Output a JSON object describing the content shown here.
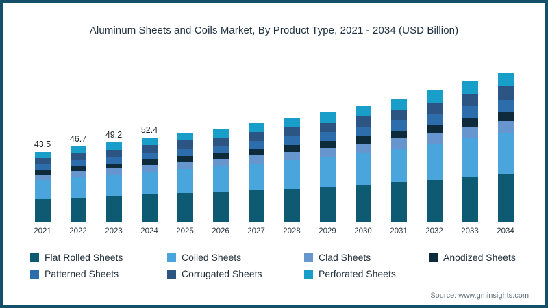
{
  "frame": {
    "border_color": "#15506a",
    "background": "#ffffff"
  },
  "title": "Aluminum Sheets and Coils Market, By Product Type, 2021 - 2034 (USD Billion)",
  "source": "Source: www.gminsights.com",
  "chart_data": {
    "type": "bar",
    "stacked": true,
    "grid": false,
    "legend_position": "bottom",
    "xlabel": "",
    "ylabel": "USD Billion",
    "categories": [
      "2021",
      "2022",
      "2023",
      "2024",
      "2025",
      "2026",
      "2027",
      "2028",
      "2029",
      "2030",
      "2031",
      "2032",
      "2033",
      "2034"
    ],
    "series": [
      {
        "name": "Flat Rolled Sheets",
        "color": "#0f5a73",
        "values": [
          13.9,
          15.0,
          15.7,
          16.8,
          17.7,
          18.4,
          19.5,
          20.6,
          21.7,
          23.0,
          24.5,
          26.0,
          27.9,
          29.6
        ]
      },
      {
        "name": "Coiled Sheets",
        "color": "#4aa5dd",
        "values": [
          12.0,
          12.8,
          13.5,
          14.4,
          15.2,
          15.8,
          16.8,
          17.7,
          18.7,
          19.7,
          21.0,
          22.4,
          24.0,
          25.4
        ]
      },
      {
        "name": "Clad Sheets",
        "color": "#6795cd",
        "values": [
          3.5,
          3.7,
          3.9,
          4.2,
          4.4,
          4.6,
          4.9,
          5.2,
          5.4,
          5.7,
          6.1,
          6.5,
          7.0,
          7.4
        ]
      },
      {
        "name": "Anodized Sheets",
        "color": "#0d2b3b",
        "values": [
          2.8,
          3.0,
          3.2,
          3.4,
          3.6,
          3.7,
          4.0,
          4.2,
          4.4,
          4.7,
          5.0,
          5.3,
          5.7,
          6.0
        ]
      },
      {
        "name": "Patterned Sheets",
        "color": "#2e6dab",
        "values": [
          3.5,
          3.7,
          3.9,
          4.2,
          4.4,
          4.6,
          4.9,
          5.2,
          5.4,
          5.7,
          6.1,
          6.5,
          7.0,
          7.4
        ]
      },
      {
        "name": "Corrugated Sheets",
        "color": "#2c5583",
        "values": [
          3.9,
          4.2,
          4.4,
          4.7,
          5.0,
          5.2,
          5.5,
          5.8,
          6.1,
          6.5,
          6.9,
          7.3,
          7.8,
          8.3
        ]
      },
      {
        "name": "Perforated Sheets",
        "color": "#189ec9",
        "values": [
          3.9,
          4.3,
          4.6,
          4.7,
          5.0,
          5.2,
          5.4,
          5.8,
          6.2,
          6.5,
          6.9,
          7.4,
          7.8,
          8.3
        ]
      }
    ],
    "totals": [
      43.5,
      46.7,
      49.2,
      52.4,
      55.3,
      57.5,
      61.0,
      64.5,
      67.9,
      71.8,
      76.5,
      81.4,
      87.2,
      92.4
    ],
    "total_labels_shown": [
      "43.5",
      "46.7",
      "49.2",
      "52.4"
    ]
  }
}
